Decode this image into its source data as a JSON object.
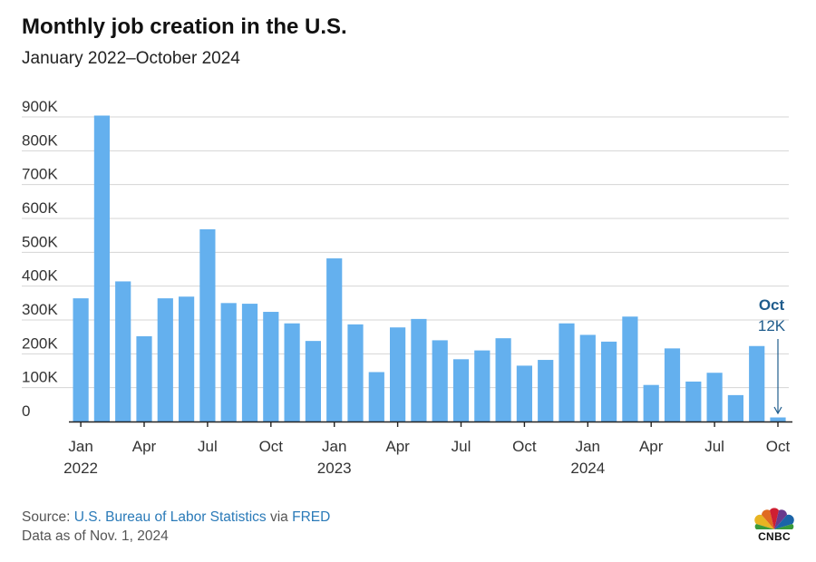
{
  "header": {
    "title": "Monthly job creation in the U.S.",
    "subtitle": "January 2022–October 2024"
  },
  "chart_data": {
    "type": "bar",
    "title": "Monthly job creation in the U.S.",
    "subtitle": "January 2022–October 2024",
    "categories": [
      "2022-01",
      "2022-02",
      "2022-03",
      "2022-04",
      "2022-05",
      "2022-06",
      "2022-07",
      "2022-08",
      "2022-09",
      "2022-10",
      "2022-11",
      "2022-12",
      "2023-01",
      "2023-02",
      "2023-03",
      "2023-04",
      "2023-05",
      "2023-06",
      "2023-07",
      "2023-08",
      "2023-09",
      "2023-10",
      "2023-11",
      "2023-12",
      "2024-01",
      "2024-02",
      "2024-03",
      "2024-04",
      "2024-05",
      "2024-06",
      "2024-07",
      "2024-08",
      "2024-09",
      "2024-10"
    ],
    "values": [
      364000,
      904000,
      414000,
      252000,
      364000,
      369000,
      568000,
      350000,
      348000,
      324000,
      290000,
      238000,
      482000,
      287000,
      146000,
      278000,
      303000,
      240000,
      184000,
      210000,
      246000,
      165000,
      182000,
      290000,
      256000,
      236000,
      310000,
      108000,
      216000,
      118000,
      144000,
      78000,
      223000,
      12000
    ],
    "ylim": [
      0,
      900000
    ],
    "yticks": [
      0,
      100000,
      200000,
      300000,
      400000,
      500000,
      600000,
      700000,
      800000,
      900000
    ],
    "ytick_labels": [
      "0",
      "100K",
      "200K",
      "300K",
      "400K",
      "500K",
      "600K",
      "700K",
      "800K",
      "900K"
    ],
    "xtick_labels": [
      {
        "index": 0,
        "label": "Jan",
        "year": "2022"
      },
      {
        "index": 3,
        "label": "Apr"
      },
      {
        "index": 6,
        "label": "Jul"
      },
      {
        "index": 9,
        "label": "Oct"
      },
      {
        "index": 12,
        "label": "Jan",
        "year": "2023"
      },
      {
        "index": 15,
        "label": "Apr"
      },
      {
        "index": 18,
        "label": "Jul"
      },
      {
        "index": 21,
        "label": "Oct"
      },
      {
        "index": 24,
        "label": "Jan",
        "year": "2024"
      },
      {
        "index": 27,
        "label": "Apr"
      },
      {
        "index": 30,
        "label": "Jul"
      },
      {
        "index": 33,
        "label": "Oct"
      }
    ],
    "annotation": {
      "index": 33,
      "label": "Oct",
      "value_label": "12K"
    },
    "grid": true,
    "bar_color": "#64b0ee",
    "annotation_color": "#1f5c8c"
  },
  "footer": {
    "source_prefix": "Source: ",
    "source_link": "U.S. Bureau of Labor Statistics",
    "source_via": " via ",
    "source_link2": "FRED",
    "data_date": "Data as of Nov. 1, 2024",
    "logo_text": "CNBC",
    "logo_icon": "peacock-icon"
  }
}
